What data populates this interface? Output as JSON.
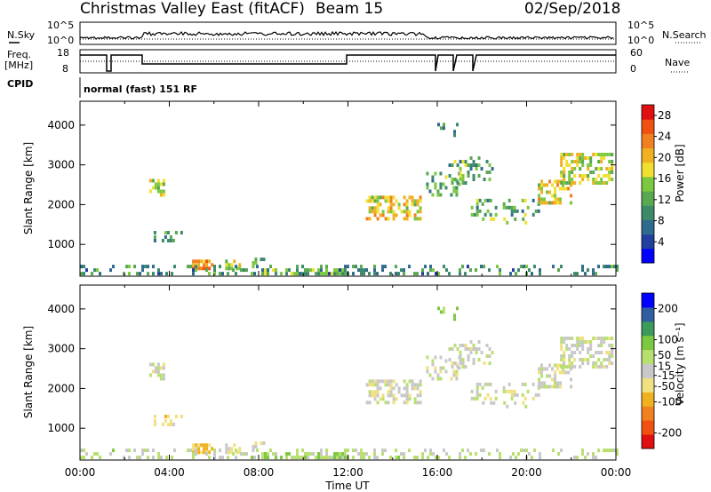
{
  "header": {
    "title": "Christmas Valley East (fitACF)",
    "beam": "Beam 15",
    "date": "02/Sep/2018"
  },
  "noise_panel": {
    "left_label": "N.Sky",
    "ticks_left": [
      "10^5",
      "10^0"
    ],
    "ticks_right": [
      "10^5",
      "10^0"
    ],
    "right_label": "N.Search"
  },
  "freq_panel": {
    "left_label_1": "Freq.",
    "left_label_2": "[MHz]",
    "ticks_left": [
      "18",
      "8"
    ],
    "ticks_right": [
      "60",
      "0"
    ],
    "right_label": "Nave"
  },
  "cpid": {
    "label": "CPID",
    "mode": "normal (fast) 151 RF"
  },
  "colors": {
    "power_scale": [
      "#0000ff",
      "#223fa0",
      "#2f6b8f",
      "#3c8a6a",
      "#5aa850",
      "#7cc840",
      "#f0e030",
      "#f0b020",
      "#f08020",
      "#f05010",
      "#e01010"
    ],
    "velocity_scale": [
      "#e01010",
      "#f05010",
      "#f08020",
      "#f0b020",
      "#f0e080",
      "#c8c8c8",
      "#b8e070",
      "#7cc840",
      "#3c9a5a",
      "#2f5fa0",
      "#0000ff"
    ]
  },
  "chart_data": [
    {
      "type": "heatmap",
      "name": "power",
      "ylabel": "Slant Range [km]",
      "yticks": [
        "1000",
        "2000",
        "3000",
        "4000"
      ],
      "ylim": [
        200,
        4600
      ],
      "xlim": [
        0,
        24
      ],
      "colorbar": {
        "label": "Power [dB]",
        "ticks": [
          "4",
          "8",
          "12",
          "16",
          "20",
          "24",
          "28"
        ],
        "range": [
          0,
          30
        ]
      }
    },
    {
      "type": "heatmap",
      "name": "velocity",
      "xlabel": "Time UT",
      "xticks": [
        "00:00",
        "04:00",
        "08:00",
        "12:00",
        "16:00",
        "20:00",
        "00:00"
      ],
      "ylabel": "Slant Range [km]",
      "yticks": [
        "1000",
        "2000",
        "3000",
        "4000"
      ],
      "ylim": [
        200,
        4600
      ],
      "xlim": [
        0,
        24
      ],
      "colorbar": {
        "label": "Velocity [m s⁻¹]",
        "ticks": [
          "200",
          "100",
          "50",
          "15",
          "-15",
          "-50",
          "-100",
          "-200"
        ],
        "range": [
          -250,
          250
        ]
      }
    }
  ]
}
